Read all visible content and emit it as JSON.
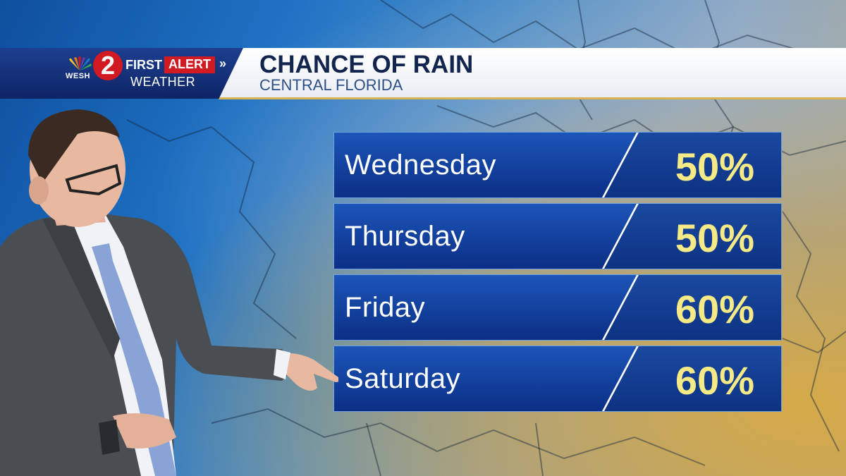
{
  "brand": {
    "station": "WESH",
    "channel": "2",
    "first": "FIRST",
    "alert": "ALERT",
    "weather": "WEATHER"
  },
  "header": {
    "title": "CHANCE OF RAIN",
    "subtitle": "CENTRAL FLORIDA"
  },
  "forecast": [
    {
      "day": "Wednesday",
      "chance": "50%"
    },
    {
      "day": "Thursday",
      "chance": "50%"
    },
    {
      "day": "Friday",
      "chance": "60%"
    },
    {
      "day": "Saturday",
      "chance": "60%"
    }
  ],
  "colors": {
    "accent_red": "#d11a22",
    "navy": "#12254f",
    "percent_yellow": "#f6ea86",
    "row_blue": "#0b2f86",
    "gold_rule": "#d9b254"
  }
}
